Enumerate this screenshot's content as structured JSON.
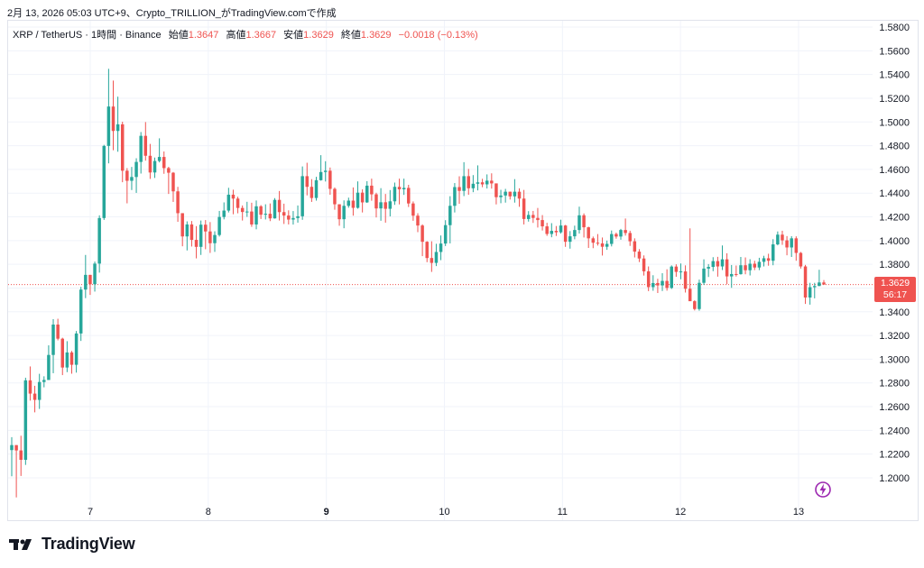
{
  "header": {
    "caption": "2月 13, 2026 05:03 UTC+9、Crypto_TRILLION_がTradingView.comで作成"
  },
  "legend": {
    "symbol": "XRP / TetherUS · 1時間 · Binance",
    "open_label": "始値",
    "open": "1.3647",
    "high_label": "高値",
    "high": "1.3667",
    "low_label": "安値",
    "low": "1.3629",
    "close_label": "終値",
    "close": "1.3629",
    "change": "−0.0018 (−0.13%)"
  },
  "price_tag": {
    "price": "1.3629",
    "countdown": "56:17"
  },
  "logo": {
    "text": "TradingView"
  },
  "colors": {
    "up": "#26a69a",
    "down": "#ef5350",
    "grid": "#f0f3fa",
    "axis_text": "#131722",
    "last_price_line": "#ef5350"
  },
  "icons": {
    "logo": "tradingview-logo-icon",
    "bolt": "lightning-icon"
  },
  "chart_data": {
    "type": "candlestick",
    "ylim": [
      1.18,
      1.585
    ],
    "y_ticks": [
      "1.5800",
      "1.5600",
      "1.5400",
      "1.5200",
      "1.5000",
      "1.4800",
      "1.4600",
      "1.4400",
      "1.4200",
      "1.4000",
      "1.3800",
      "1.3600",
      "1.3400",
      "1.3200",
      "1.3000",
      "1.2800",
      "1.2600",
      "1.2400",
      "1.2200",
      "1.2000"
    ],
    "x_ticks": [
      {
        "label": "7",
        "day": 7,
        "bold": false
      },
      {
        "label": "8",
        "day": 8,
        "bold": false
      },
      {
        "label": "9",
        "day": 9,
        "bold": true
      },
      {
        "label": "10",
        "day": 10,
        "bold": false
      },
      {
        "label": "11",
        "day": 11,
        "bold": false
      },
      {
        "label": "12",
        "day": 12,
        "bold": false
      },
      {
        "label": "13",
        "day": 13,
        "bold": false
      }
    ],
    "last_price": 1.3629,
    "anchors": [
      [
        6.3,
        1.225
      ],
      [
        6.45,
        1.28
      ],
      [
        6.6,
        1.33
      ],
      [
        6.75,
        1.34
      ],
      [
        6.85,
        1.39
      ],
      [
        6.95,
        1.48
      ],
      [
        7.0,
        1.51
      ],
      [
        7.1,
        1.49
      ],
      [
        7.2,
        1.455
      ],
      [
        7.35,
        1.48
      ],
      [
        7.5,
        1.46
      ],
      [
        7.6,
        1.44
      ],
      [
        7.7,
        1.405
      ],
      [
        7.85,
        1.395
      ],
      [
        8.0,
        1.41
      ],
      [
        8.15,
        1.435
      ],
      [
        8.3,
        1.425
      ],
      [
        8.5,
        1.42
      ],
      [
        8.7,
        1.43
      ],
      [
        8.8,
        1.45
      ],
      [
        9.0,
        1.42
      ],
      [
        9.15,
        1.445
      ],
      [
        9.3,
        1.43
      ],
      [
        9.5,
        1.45
      ],
      [
        9.65,
        1.42
      ],
      [
        9.75,
        1.39
      ],
      [
        9.85,
        1.395
      ],
      [
        9.95,
        1.44
      ],
      [
        10.1,
        1.455
      ],
      [
        10.3,
        1.44
      ],
      [
        10.45,
        1.445
      ],
      [
        10.6,
        1.42
      ],
      [
        10.8,
        1.41
      ],
      [
        11.0,
        1.405
      ],
      [
        11.2,
        1.4
      ],
      [
        11.4,
        1.405
      ],
      [
        11.55,
        1.38
      ],
      [
        11.7,
        1.36
      ],
      [
        11.85,
        1.375
      ],
      [
        12.0,
        1.355
      ],
      [
        12.15,
        1.375
      ],
      [
        12.3,
        1.38
      ],
      [
        12.45,
        1.375
      ],
      [
        12.6,
        1.38
      ],
      [
        12.75,
        1.385
      ],
      [
        12.85,
        1.405
      ],
      [
        12.95,
        1.4
      ],
      [
        13.05,
        1.37
      ],
      [
        13.15,
        1.365
      ],
      [
        13.25,
        1.363
      ]
    ],
    "candles": [
      [
        1.2234,
        1.2343,
        1.2013,
        1.2276
      ],
      [
        1.2276,
        1.2276,
        1.1835,
        1.2231
      ],
      [
        1.2231,
        1.2355,
        1.2016,
        1.2152
      ],
      [
        1.2152,
        1.2844,
        1.2109,
        1.2822
      ],
      [
        1.2822,
        1.2939,
        1.2651,
        1.271
      ],
      [
        1.271,
        1.2776,
        1.2552,
        1.2657
      ],
      [
        1.2657,
        1.2877,
        1.2581,
        1.2808
      ],
      [
        1.2808,
        1.2856,
        1.2763,
        1.2825
      ],
      [
        1.2825,
        1.3117,
        1.2825,
        1.3036
      ],
      [
        1.3036,
        1.3338,
        1.2882,
        1.3292
      ],
      [
        1.3292,
        1.3341,
        1.3159,
        1.3173
      ],
      [
        1.3173,
        1.3181,
        1.2866,
        1.293
      ],
      [
        1.293,
        1.3152,
        1.2891,
        1.3057
      ],
      [
        1.3057,
        1.307,
        1.2878,
        1.2953
      ],
      [
        1.2953,
        1.3238,
        1.2887,
        1.3217
      ],
      [
        1.3217,
        1.361,
        1.3154,
        1.3587
      ],
      [
        1.3587,
        1.3879,
        1.3515,
        1.3711
      ],
      [
        1.3711,
        1.3711,
        1.3542,
        1.3632
      ],
      [
        1.3632,
        1.3823,
        1.357,
        1.3806
      ],
      [
        1.3806,
        1.4213,
        1.373,
        1.419
      ],
      [
        1.419,
        1.4807,
        1.4174,
        1.4798
      ],
      [
        1.4798,
        1.5448,
        1.4651,
        1.513
      ],
      [
        1.513,
        1.5349,
        1.4762,
        1.4924
      ],
      [
        1.4924,
        1.5213,
        1.4749,
        1.498
      ],
      [
        1.498,
        1.5002,
        1.4492,
        1.4589
      ],
      [
        1.4589,
        1.4611,
        1.4314,
        1.4504
      ],
      [
        1.4504,
        1.4621,
        1.4426,
        1.4536
      ],
      [
        1.4536,
        1.4694,
        1.4402,
        1.4663
      ],
      [
        1.4663,
        1.4915,
        1.4565,
        1.4883
      ],
      [
        1.4883,
        1.4999,
        1.4674,
        1.4715
      ],
      [
        1.4715,
        1.4815,
        1.452,
        1.4574
      ],
      [
        1.4574,
        1.47,
        1.4528,
        1.4671
      ],
      [
        1.4671,
        1.4862,
        1.4659,
        1.4705
      ],
      [
        1.4705,
        1.4751,
        1.4563,
        1.4611
      ],
      [
        1.4611,
        1.4622,
        1.4393,
        1.4572
      ],
      [
        1.4572,
        1.4578,
        1.4326,
        1.4415
      ],
      [
        1.4415,
        1.4453,
        1.4158,
        1.4231
      ],
      [
        1.4231,
        1.4231,
        1.3952,
        1.4035
      ],
      [
        1.4035,
        1.4162,
        1.3917,
        1.4136
      ],
      [
        1.4136,
        1.4165,
        1.395,
        1.4006
      ],
      [
        1.4006,
        1.4122,
        1.385,
        1.3947
      ],
      [
        1.3947,
        1.4169,
        1.3879,
        1.4134
      ],
      [
        1.4134,
        1.4173,
        1.3927,
        1.4077
      ],
      [
        1.4077,
        1.4156,
        1.3896,
        1.3978
      ],
      [
        1.3978,
        1.4079,
        1.3905,
        1.4047
      ],
      [
        1.4047,
        1.425,
        1.4034,
        1.4199
      ],
      [
        1.4199,
        1.4322,
        1.4179,
        1.4253
      ],
      [
        1.4253,
        1.4445,
        1.4237,
        1.4387
      ],
      [
        1.4387,
        1.4429,
        1.4222,
        1.4354
      ],
      [
        1.4354,
        1.437,
        1.423,
        1.4275
      ],
      [
        1.4275,
        1.4296,
        1.4169,
        1.4241
      ],
      [
        1.4241,
        1.4327,
        1.42,
        1.4245
      ],
      [
        1.4245,
        1.4319,
        1.4116,
        1.4136
      ],
      [
        1.4136,
        1.4338,
        1.4095,
        1.4289
      ],
      [
        1.4289,
        1.4299,
        1.4182,
        1.4218
      ],
      [
        1.4218,
        1.4306,
        1.4178,
        1.4226
      ],
      [
        1.4226,
        1.4313,
        1.4164,
        1.4187
      ],
      [
        1.4187,
        1.4358,
        1.4185,
        1.4343
      ],
      [
        1.4343,
        1.4418,
        1.4169,
        1.424
      ],
      [
        1.424,
        1.4311,
        1.414,
        1.4211
      ],
      [
        1.4211,
        1.4255,
        1.4136,
        1.4177
      ],
      [
        1.4177,
        1.4249,
        1.4135,
        1.419
      ],
      [
        1.419,
        1.4296,
        1.4151,
        1.4205
      ],
      [
        1.4205,
        1.4625,
        1.4175,
        1.4543
      ],
      [
        1.4543,
        1.4656,
        1.4381,
        1.4453
      ],
      [
        1.4453,
        1.4518,
        1.4326,
        1.4359
      ],
      [
        1.4359,
        1.4537,
        1.4337,
        1.4509
      ],
      [
        1.4509,
        1.472,
        1.4505,
        1.4578
      ],
      [
        1.4578,
        1.4669,
        1.4498,
        1.4589
      ],
      [
        1.4589,
        1.4616,
        1.4386,
        1.4436
      ],
      [
        1.4436,
        1.4448,
        1.426,
        1.4306
      ],
      [
        1.4306,
        1.4306,
        1.4125,
        1.418
      ],
      [
        1.418,
        1.4339,
        1.4104,
        1.4293
      ],
      [
        1.4293,
        1.4362,
        1.4277,
        1.4337
      ],
      [
        1.4337,
        1.4448,
        1.421,
        1.4276
      ],
      [
        1.4276,
        1.4499,
        1.4269,
        1.4404
      ],
      [
        1.4404,
        1.4432,
        1.4237,
        1.4322
      ],
      [
        1.4322,
        1.4501,
        1.4318,
        1.4463
      ],
      [
        1.4463,
        1.4522,
        1.4336,
        1.439
      ],
      [
        1.439,
        1.4403,
        1.4195,
        1.4271
      ],
      [
        1.4271,
        1.4442,
        1.4167,
        1.4323
      ],
      [
        1.4323,
        1.4393,
        1.4151,
        1.4268
      ],
      [
        1.4268,
        1.4426,
        1.4204,
        1.4331
      ],
      [
        1.4331,
        1.4489,
        1.4301,
        1.4453
      ],
      [
        1.4453,
        1.4522,
        1.4305,
        1.4432
      ],
      [
        1.4432,
        1.4522,
        1.4385,
        1.4444
      ],
      [
        1.4444,
        1.447,
        1.4283,
        1.4313
      ],
      [
        1.4313,
        1.433,
        1.4167,
        1.421
      ],
      [
        1.421,
        1.4231,
        1.4071,
        1.4127
      ],
      [
        1.4127,
        1.4137,
        1.3869,
        1.399
      ],
      [
        1.399,
        1.3995,
        1.3818,
        1.3853
      ],
      [
        1.3853,
        1.3994,
        1.3736,
        1.3812
      ],
      [
        1.3812,
        1.3973,
        1.3785,
        1.3904
      ],
      [
        1.3904,
        1.4043,
        1.3835,
        1.3975
      ],
      [
        1.3975,
        1.4172,
        1.3954,
        1.413
      ],
      [
        1.413,
        1.4374,
        1.3976,
        1.4293
      ],
      [
        1.4293,
        1.4485,
        1.4237,
        1.4451
      ],
      [
        1.4451,
        1.4542,
        1.431,
        1.4419
      ],
      [
        1.4419,
        1.4661,
        1.4375,
        1.4543
      ],
      [
        1.4543,
        1.4604,
        1.4386,
        1.4441
      ],
      [
        1.4441,
        1.4552,
        1.4408,
        1.4479
      ],
      [
        1.4479,
        1.4634,
        1.4423,
        1.4491
      ],
      [
        1.4491,
        1.4521,
        1.445,
        1.4474
      ],
      [
        1.4474,
        1.4558,
        1.4439,
        1.4505
      ],
      [
        1.4505,
        1.4567,
        1.4438,
        1.4482
      ],
      [
        1.4482,
        1.4482,
        1.4305,
        1.4366
      ],
      [
        1.4366,
        1.4428,
        1.4315,
        1.438
      ],
      [
        1.438,
        1.4436,
        1.432,
        1.4412
      ],
      [
        1.4412,
        1.4413,
        1.4346,
        1.4373
      ],
      [
        1.4373,
        1.4518,
        1.432,
        1.4412
      ],
      [
        1.4412,
        1.4441,
        1.4285,
        1.4354
      ],
      [
        1.4354,
        1.4427,
        1.4136,
        1.4182
      ],
      [
        1.4182,
        1.4248,
        1.416,
        1.4216
      ],
      [
        1.4216,
        1.425,
        1.4149,
        1.4191
      ],
      [
        1.4191,
        1.4275,
        1.411,
        1.4173
      ],
      [
        1.4173,
        1.4215,
        1.4085,
        1.412
      ],
      [
        1.412,
        1.415,
        1.404,
        1.4056
      ],
      [
        1.4056,
        1.4147,
        1.4028,
        1.4082
      ],
      [
        1.4082,
        1.4123,
        1.4039,
        1.407
      ],
      [
        1.407,
        1.4176,
        1.4059,
        1.4127
      ],
      [
        1.4127,
        1.4132,
        1.3947,
        1.399
      ],
      [
        1.399,
        1.408,
        1.3932,
        1.4036
      ],
      [
        1.4036,
        1.4126,
        1.4011,
        1.4089
      ],
      [
        1.4089,
        1.4286,
        1.4059,
        1.4213
      ],
      [
        1.4213,
        1.4229,
        1.4026,
        1.4112
      ],
      [
        1.4112,
        1.4117,
        1.3938,
        1.4019
      ],
      [
        1.4019,
        1.4034,
        1.3936,
        1.3982
      ],
      [
        1.3982,
        1.4055,
        1.3958,
        1.3976
      ],
      [
        1.3976,
        1.4026,
        1.3874,
        1.3948
      ],
      [
        1.3948,
        1.4,
        1.3922,
        1.3972
      ],
      [
        1.3972,
        1.4085,
        1.3951,
        1.4055
      ],
      [
        1.4055,
        1.4067,
        1.4016,
        1.4034
      ],
      [
        1.4034,
        1.4099,
        1.4007,
        1.4089
      ],
      [
        1.4089,
        1.4186,
        1.4042,
        1.4064
      ],
      [
        1.4064,
        1.4083,
        1.3955,
        1.3994
      ],
      [
        1.3994,
        1.4019,
        1.3858,
        1.3907
      ],
      [
        1.3907,
        1.3928,
        1.3819,
        1.3849
      ],
      [
        1.3849,
        1.3875,
        1.3705,
        1.3741
      ],
      [
        1.3741,
        1.3782,
        1.3574,
        1.3608
      ],
      [
        1.3608,
        1.3708,
        1.3577,
        1.3642
      ],
      [
        1.3642,
        1.3678,
        1.3558,
        1.3622
      ],
      [
        1.3622,
        1.3725,
        1.3575,
        1.366
      ],
      [
        1.366,
        1.3758,
        1.3578,
        1.3601
      ],
      [
        1.3601,
        1.3791,
        1.3592,
        1.3781
      ],
      [
        1.3781,
        1.38,
        1.3695,
        1.3736
      ],
      [
        1.3736,
        1.3807,
        1.3674,
        1.374
      ],
      [
        1.374,
        1.3791,
        1.3562,
        1.3594
      ],
      [
        1.3594,
        1.4103,
        1.3514,
        1.3489
      ],
      [
        1.3489,
        1.3497,
        1.3411,
        1.3423
      ],
      [
        1.3423,
        1.3671,
        1.3409,
        1.3644
      ],
      [
        1.3644,
        1.3842,
        1.3626,
        1.3764
      ],
      [
        1.3764,
        1.3802,
        1.3693,
        1.3778
      ],
      [
        1.3778,
        1.386,
        1.3742,
        1.3827
      ],
      [
        1.3827,
        1.3863,
        1.3696,
        1.3782
      ],
      [
        1.3782,
        1.3959,
        1.3752,
        1.3842
      ],
      [
        1.3842,
        1.3893,
        1.3632,
        1.3698
      ],
      [
        1.3698,
        1.3794,
        1.3602,
        1.3718
      ],
      [
        1.3718,
        1.379,
        1.3697,
        1.3717
      ],
      [
        1.3717,
        1.3862,
        1.3713,
        1.3792
      ],
      [
        1.3792,
        1.3858,
        1.3716,
        1.375
      ],
      [
        1.375,
        1.3843,
        1.3706,
        1.3805
      ],
      [
        1.3805,
        1.383,
        1.3751,
        1.3773
      ],
      [
        1.3773,
        1.3855,
        1.3751,
        1.3821
      ],
      [
        1.3821,
        1.3872,
        1.3782,
        1.3851
      ],
      [
        1.3851,
        1.3889,
        1.3788,
        1.383
      ],
      [
        1.383,
        1.4012,
        1.3792,
        1.3968
      ],
      [
        1.3968,
        1.4077,
        1.396,
        1.405
      ],
      [
        1.405,
        1.4083,
        1.3964,
        1.4002
      ],
      [
        1.4002,
        1.4038,
        1.3876,
        1.3942
      ],
      [
        1.3942,
        1.4037,
        1.3862,
        1.4019
      ],
      [
        1.4019,
        1.4036,
        1.383,
        1.3896
      ],
      [
        1.3896,
        1.3904,
        1.3764,
        1.3782
      ],
      [
        1.3782,
        1.3795,
        1.3466,
        1.352
      ],
      [
        1.352,
        1.3644,
        1.346,
        1.3607
      ],
      [
        1.3607,
        1.3644,
        1.3513,
        1.3617
      ],
      [
        1.3617,
        1.3754,
        1.3616,
        1.3647
      ],
      [
        1.3647,
        1.3667,
        1.3629,
        1.3629
      ]
    ]
  }
}
